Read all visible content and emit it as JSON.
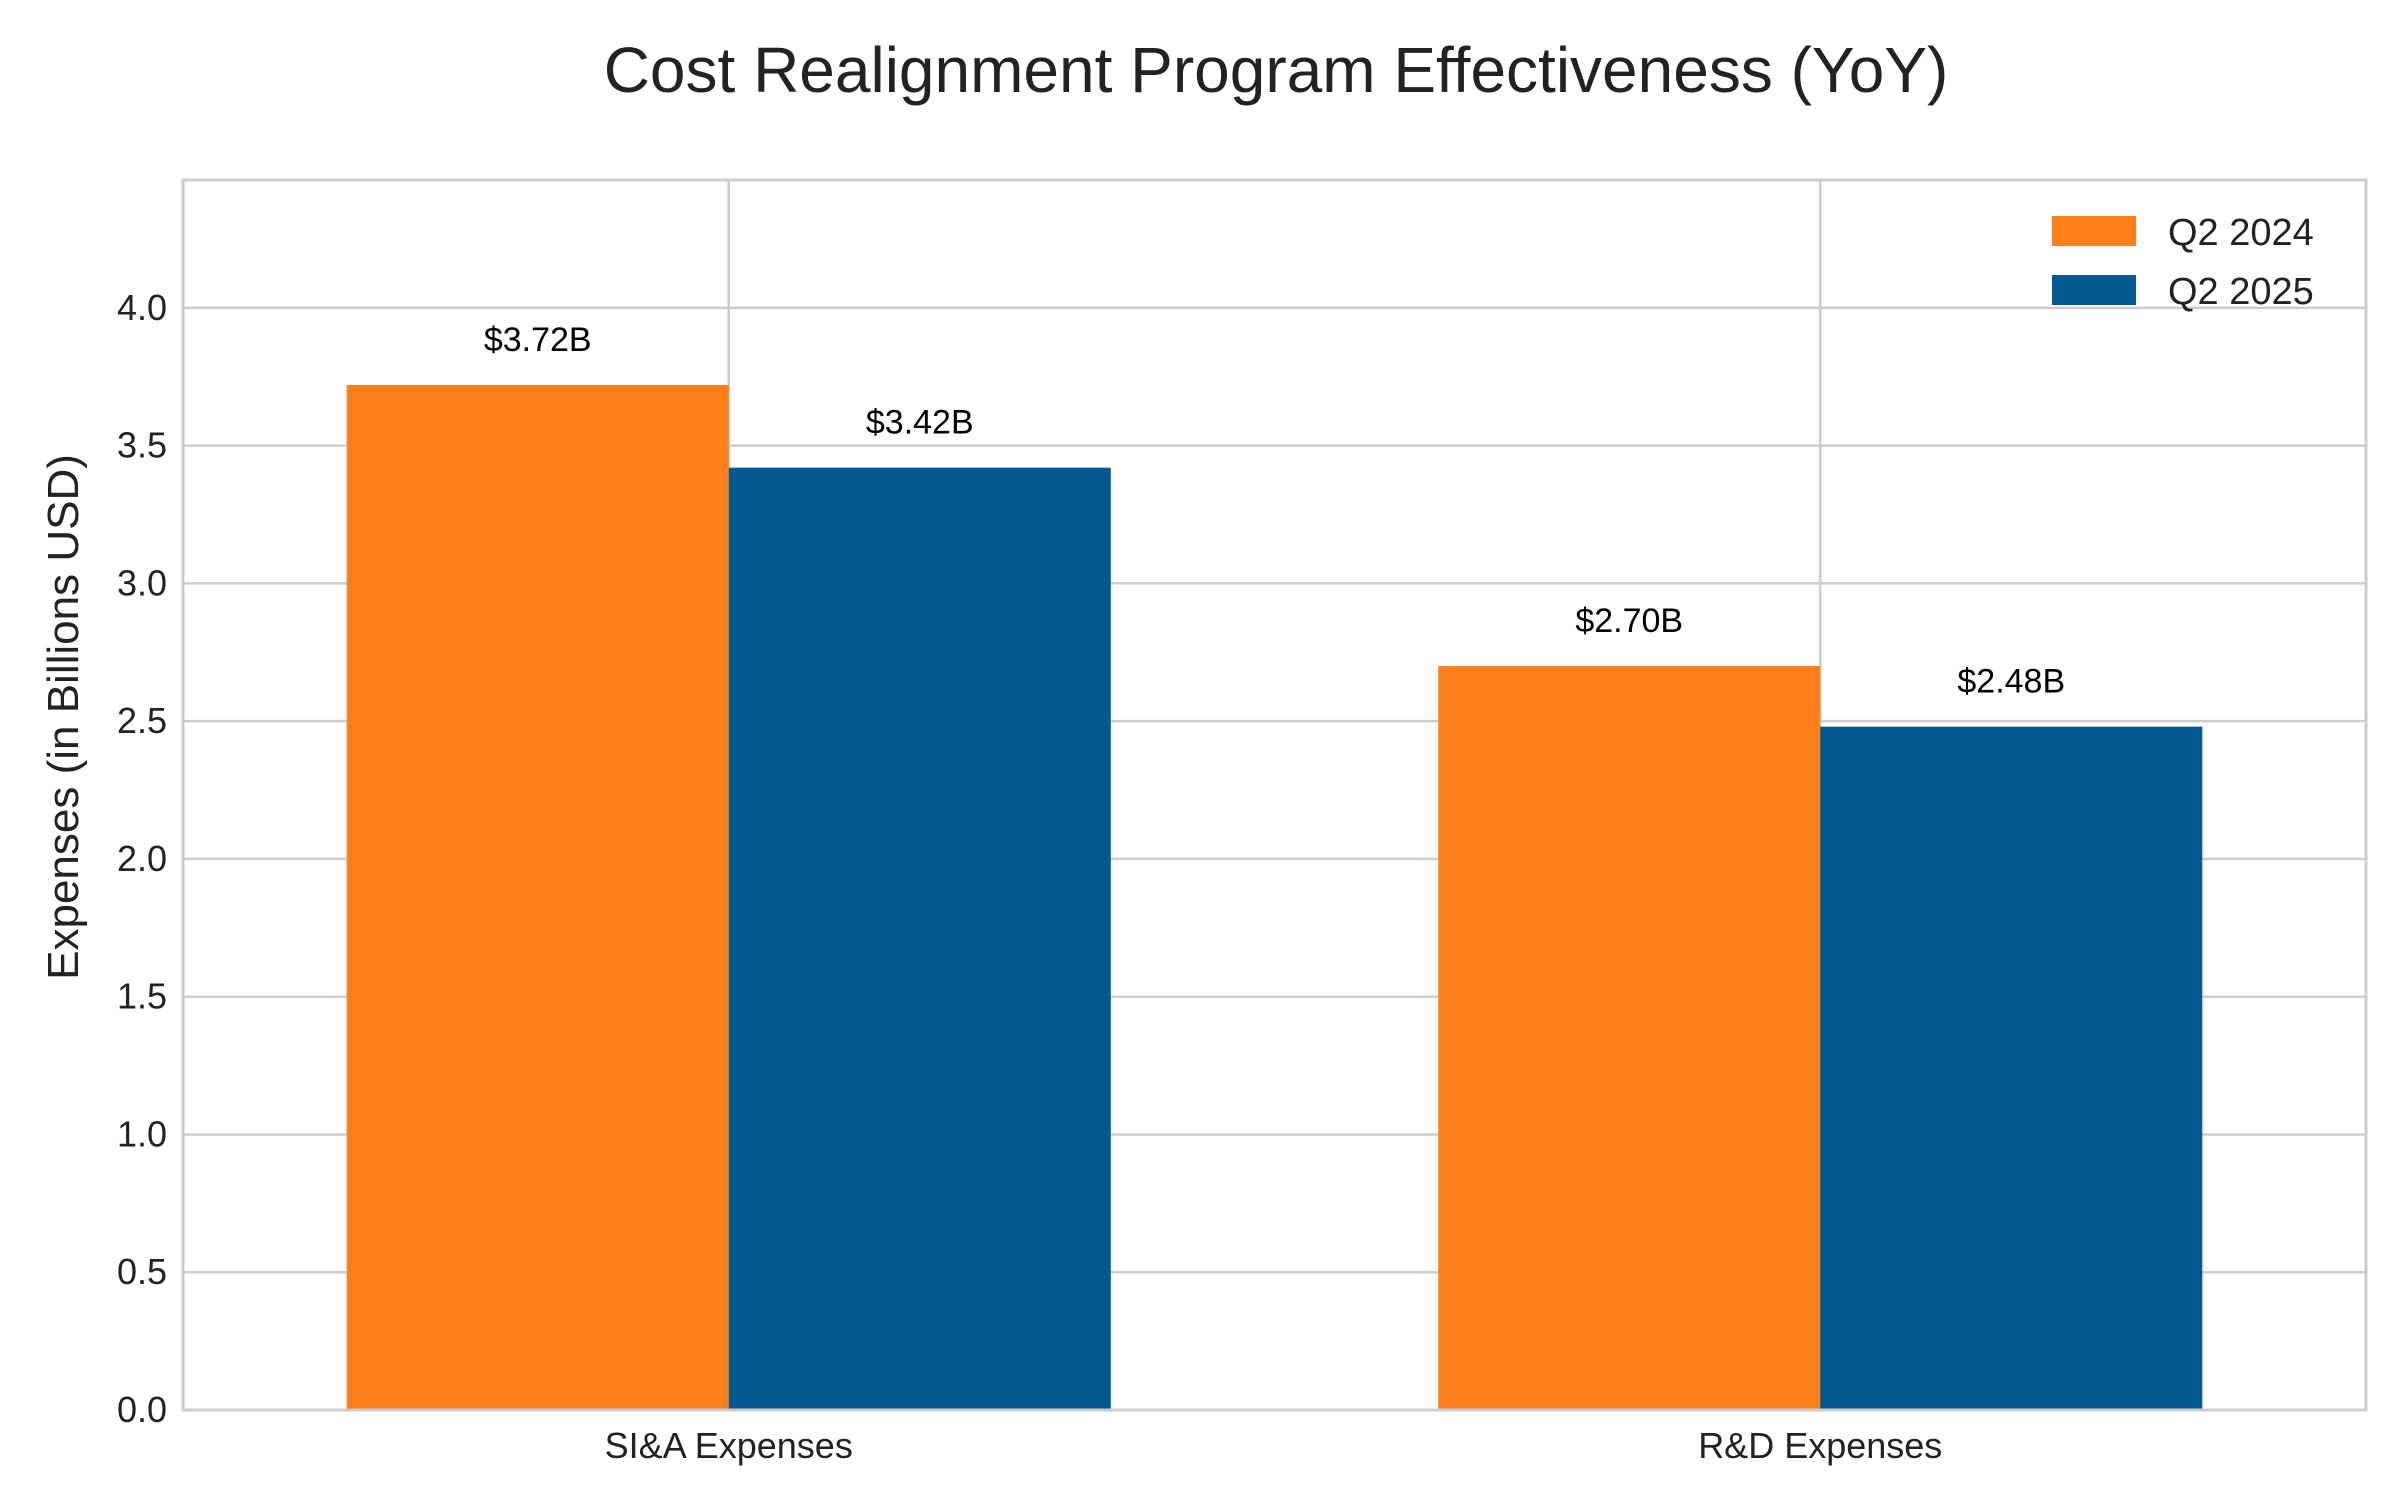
{
  "chart_data": {
    "type": "bar",
    "title": "Cost Realignment Program Effectiveness (YoY)",
    "xlabel": "",
    "ylabel": "Expenses (in Billions USD)",
    "categories": [
      "SI&A Expenses",
      "R&D Expenses"
    ],
    "series": [
      {
        "name": "Q2 2024",
        "color": "#fc7f19",
        "values": [
          3.72,
          2.7
        ],
        "labels": [
          "$3.72B",
          "$2.70B"
        ]
      },
      {
        "name": "Q2 2025",
        "color": "#025891",
        "values": [
          3.42,
          2.48
        ],
        "labels": [
          "$3.42B",
          "$2.48B"
        ]
      }
    ],
    "ylim": [
      0,
      4.464
    ],
    "yticks": [
      0.0,
      0.5,
      1.0,
      1.5,
      2.0,
      2.5,
      3.0,
      3.5,
      4.0
    ],
    "ytick_labels": [
      "0.0",
      "0.5",
      "1.0",
      "1.5",
      "2.0",
      "2.5",
      "3.0",
      "3.5",
      "4.0"
    ],
    "grid": true,
    "legend_position": "top-right"
  }
}
